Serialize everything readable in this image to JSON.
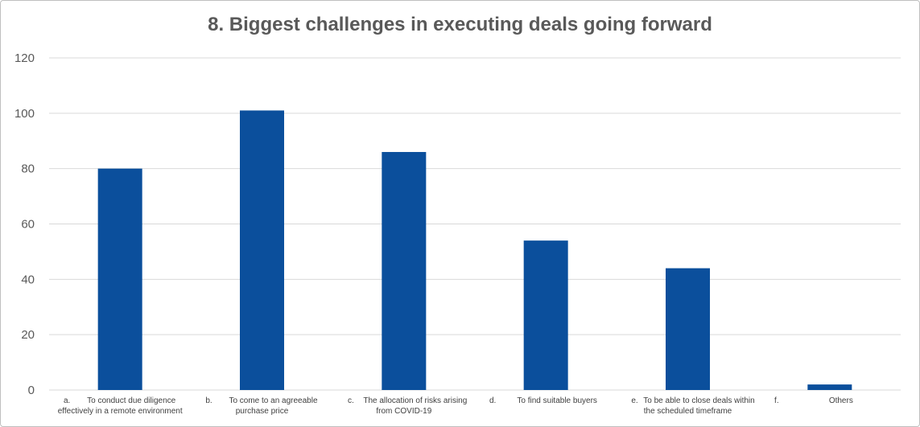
{
  "chart_data": {
    "type": "bar",
    "title": "8. Biggest challenges in executing deals going forward",
    "xlabel": "",
    "ylabel": "",
    "ylim": [
      0,
      120
    ],
    "yticks": [
      0,
      20,
      40,
      60,
      80,
      100,
      120
    ],
    "grid": true,
    "legend": "none",
    "bar_color": "#0b4f9c",
    "categories": [
      {
        "marker": "a.",
        "lines": [
          "To conduct due diligence",
          "effectively in a remote environment"
        ]
      },
      {
        "marker": "b.",
        "lines": [
          "To come to an agreeable",
          "purchase price"
        ]
      },
      {
        "marker": "c.",
        "lines": [
          "The allocation of risks arising",
          "from COVID-19"
        ]
      },
      {
        "marker": "d.",
        "lines": [
          "To find suitable buyers"
        ]
      },
      {
        "marker": "e.",
        "lines": [
          "To be able to close deals within",
          "the scheduled timeframe"
        ]
      },
      {
        "marker": "f.",
        "lines": [
          "Others"
        ]
      }
    ],
    "values": [
      80,
      101,
      86,
      54,
      44,
      2
    ]
  }
}
